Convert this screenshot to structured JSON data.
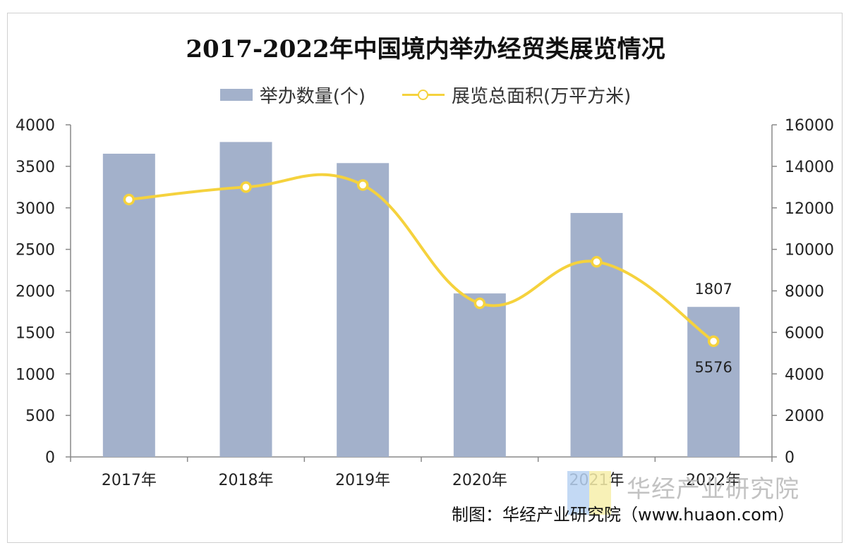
{
  "chart_data": {
    "type": "bar+line",
    "title": "2017-2022年中国境内举办经贸类展览情况",
    "categories": [
      "2017年",
      "2018年",
      "2019年",
      "2020年",
      "2021年",
      "2022年"
    ],
    "series": [
      {
        "name": "举办数量(个)",
        "type": "bar",
        "axis": "left",
        "values": [
          3652,
          3793,
          3539,
          1969,
          2938,
          1807
        ]
      },
      {
        "name": "展览总面积(万平方米)",
        "type": "line",
        "axis": "right",
        "values": [
          12400,
          13000,
          13100,
          7400,
          9400,
          5576
        ]
      }
    ],
    "y_left": {
      "min": 0,
      "max": 4000,
      "step": 500,
      "ticks": [
        "0",
        "500",
        "1000",
        "1500",
        "2000",
        "2500",
        "3000",
        "3500",
        "4000"
      ]
    },
    "y_right": {
      "min": 0,
      "max": 16000,
      "step": 2000,
      "ticks": [
        "0",
        "2000",
        "4000",
        "6000",
        "8000",
        "10000",
        "12000",
        "14000",
        "16000"
      ]
    },
    "data_labels": [
      {
        "series": "举办数量(个)",
        "category": "2022年",
        "text": "1807"
      },
      {
        "series": "展览总面积(万平方米)",
        "category": "2022年",
        "text": "5576"
      }
    ],
    "legend_position": "top-center",
    "colors": {
      "bar": "#a3b1cb",
      "line": "#f5d23d"
    }
  },
  "watermark": {
    "text": "华经产业研究院"
  },
  "source": "制图：华经产业研究院（www.huaon.com）"
}
